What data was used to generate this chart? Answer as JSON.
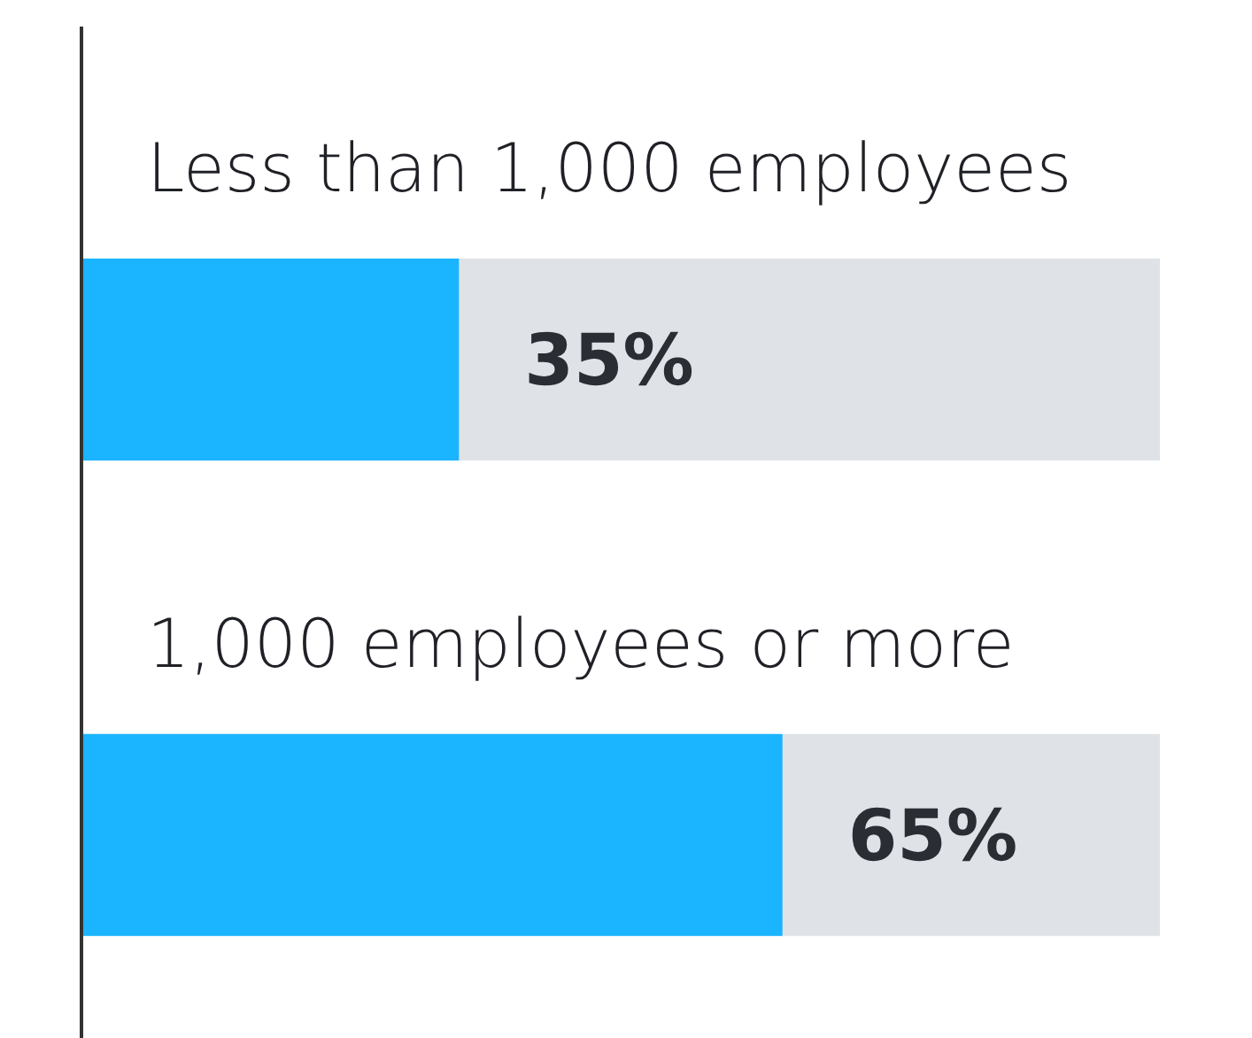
{
  "chart_data": {
    "type": "bar",
    "orientation": "horizontal",
    "categories": [
      "Less than 1,000 employees",
      "1,000 employees or more"
    ],
    "values": [
      35,
      65
    ],
    "value_labels": [
      "35%",
      "65%"
    ],
    "color": "#1ab4ff",
    "xlim": [
      0,
      100
    ],
    "tick_labels": false,
    "grid": false
  }
}
